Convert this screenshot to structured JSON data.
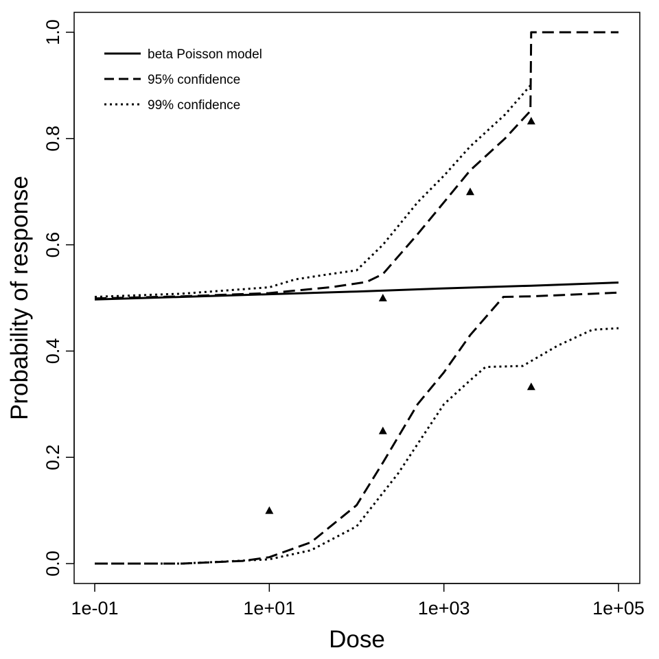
{
  "chart_data": {
    "type": "line",
    "title": "",
    "xlabel": "Dose",
    "ylabel": "Probability of response",
    "x_scale": "log10",
    "xlim": [
      0.1,
      100000
    ],
    "ylim": [
      0.0,
      1.0
    ],
    "x_ticks": [
      0.1,
      10,
      1000,
      100000
    ],
    "x_tick_labels": [
      "1e-01",
      "1e+01",
      "1e+03",
      "1e+05"
    ],
    "y_ticks": [
      0.0,
      0.2,
      0.4,
      0.6,
      0.8,
      1.0
    ],
    "y_tick_labels": [
      "0.0",
      "0.2",
      "0.4",
      "0.6",
      "0.8",
      "1.0"
    ],
    "grid": false,
    "legend_position": "top-left",
    "series": [
      {
        "name": "beta Poisson model",
        "style": "solid",
        "x": [
          0.1,
          1,
          10,
          100,
          1000,
          10000,
          100000
        ],
        "y": [
          0.497,
          0.502,
          0.507,
          0.512,
          0.518,
          0.523,
          0.529
        ]
      },
      {
        "name": "95% confidence",
        "style": "dashed",
        "part": "upper",
        "x": [
          0.1,
          1,
          10,
          50,
          130,
          200,
          500,
          1000,
          2000,
          5000,
          9800,
          10000,
          100000
        ],
        "y": [
          0.499,
          0.503,
          0.509,
          0.52,
          0.53,
          0.545,
          0.62,
          0.68,
          0.74,
          0.8,
          0.852,
          1.0,
          1.0
        ]
      },
      {
        "name": "",
        "style": "dashed",
        "part": "lower",
        "x": [
          0.1,
          1,
          5,
          10,
          30,
          100,
          200,
          500,
          1000,
          2000,
          4800,
          10000,
          100000
        ],
        "y": [
          0.0,
          0.0,
          0.005,
          0.012,
          0.04,
          0.11,
          0.19,
          0.3,
          0.36,
          0.43,
          0.502,
          0.503,
          0.51
        ]
      },
      {
        "name": "99% confidence",
        "style": "dotted",
        "part": "upper",
        "x": [
          0.1,
          1,
          10,
          20,
          50,
          100,
          200,
          500,
          1000,
          2000,
          5000,
          9800
        ],
        "y": [
          0.502,
          0.508,
          0.52,
          0.535,
          0.545,
          0.552,
          0.6,
          0.68,
          0.73,
          0.785,
          0.845,
          0.9
        ]
      },
      {
        "name": "",
        "style": "dotted",
        "part": "lower",
        "x": [
          0.1,
          1,
          10,
          30,
          100,
          300,
          1000,
          2000,
          3000,
          8000,
          20000,
          50000,
          100000
        ],
        "y": [
          0.0,
          0.0,
          0.008,
          0.025,
          0.07,
          0.17,
          0.3,
          0.345,
          0.37,
          0.372,
          0.41,
          0.44,
          0.443
        ]
      }
    ],
    "observations": {
      "marker": "triangle",
      "x": [
        10,
        200,
        200,
        2000,
        10000,
        10000
      ],
      "y": [
        0.1,
        0.5,
        0.25,
        0.7,
        0.833,
        0.333
      ]
    },
    "legend": [
      {
        "label": "beta Poisson model",
        "style": "solid"
      },
      {
        "label": "95% confidence",
        "style": "dashed"
      },
      {
        "label": "99% confidence",
        "style": "dotted"
      }
    ]
  }
}
